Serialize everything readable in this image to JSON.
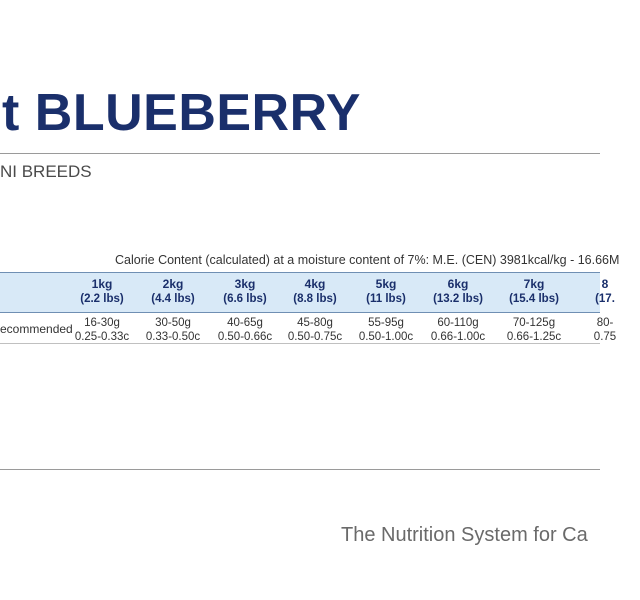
{
  "header": {
    "title": "t BLUEBERRY",
    "subtitle": "NI BREEDS"
  },
  "table": {
    "calorie_note": "Calorie Content (calculated) at a moisture content of 7%: M.E. (CEN) 3981kcal/kg - 16.66M",
    "row_label": "ecommended",
    "columns": [
      {
        "kg": "1kg",
        "lbs": "(2.2 lbs)",
        "grams": "16-30g",
        "cups": "0.25-0.33c"
      },
      {
        "kg": "2kg",
        "lbs": "(4.4 lbs)",
        "grams": "30-50g",
        "cups": "0.33-0.50c"
      },
      {
        "kg": "3kg",
        "lbs": "(6.6 lbs)",
        "grams": "40-65g",
        "cups": "0.50-0.66c"
      },
      {
        "kg": "4kg",
        "lbs": "(8.8 lbs)",
        "grams": "45-80g",
        "cups": "0.50-0.75c"
      },
      {
        "kg": "5kg",
        "lbs": "(11 lbs)",
        "grams": "55-95g",
        "cups": "0.50-1.00c"
      },
      {
        "kg": "6kg",
        "lbs": "(13.2 lbs)",
        "grams": "60-110g",
        "cups": "0.66-1.00c"
      },
      {
        "kg": "7kg",
        "lbs": "(15.4 lbs)",
        "grams": "70-125g",
        "cups": "0.66-1.25c"
      },
      {
        "kg": "8",
        "lbs": "(17.",
        "grams": "80-",
        "cups": "0.75"
      }
    ]
  },
  "footer": {
    "tagline": "The Nutrition System for Ca"
  },
  "colors": {
    "title": "#1a2f6b",
    "header_band": "#d8e9f7",
    "band_border": "#6f8fb3"
  }
}
